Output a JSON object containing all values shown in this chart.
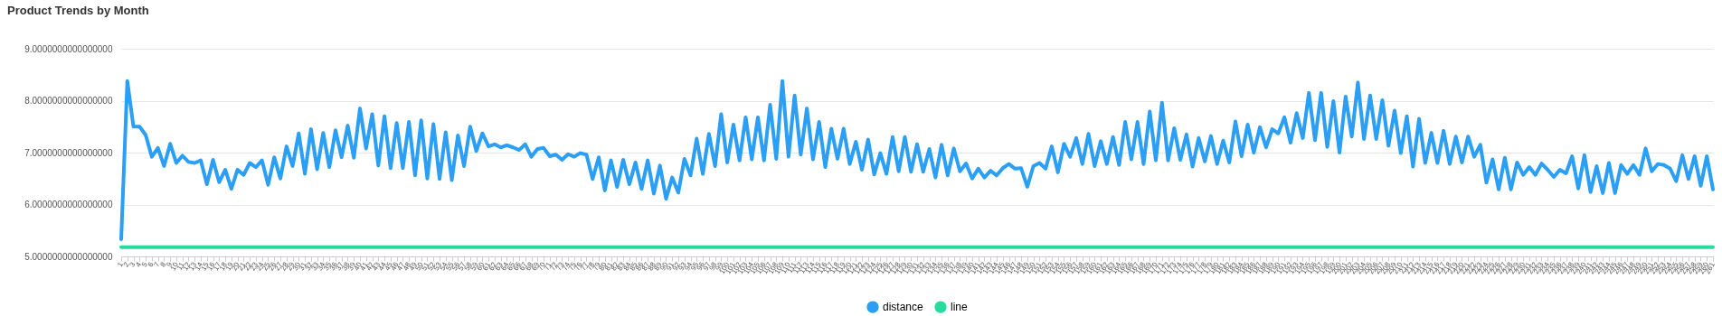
{
  "chart_data": {
    "type": "line",
    "title": "Product Trends by Month",
    "categories": [
      "1",
      "2",
      "3",
      "4",
      "5",
      "6",
      "7",
      "8",
      "9",
      "10",
      "11",
      "12",
      "13",
      "14",
      "15",
      "16",
      "17",
      "18",
      "19",
      "20",
      "21",
      "22",
      "23",
      "24",
      "25",
      "26",
      "27",
      "28",
      "29",
      "30",
      "31",
      "32",
      "33",
      "34",
      "35",
      "36",
      "37",
      "38",
      "39",
      "40",
      "41",
      "42",
      "43",
      "44",
      "45",
      "46",
      "47",
      "48",
      "49",
      "50",
      "51",
      "52",
      "53",
      "54",
      "55",
      "56",
      "57",
      "58",
      "59",
      "60",
      "61",
      "62",
      "63",
      "64",
      "65",
      "66",
      "67",
      "68",
      "69",
      "70",
      "71",
      "72",
      "73",
      "74",
      "75",
      "76",
      "77",
      "78",
      "79",
      "80",
      "81",
      "82",
      "83",
      "84",
      "85",
      "86",
      "87",
      "88",
      "89",
      "90",
      "91",
      "92",
      "93",
      "94",
      "95",
      "96",
      "97",
      "98",
      "99",
      "100",
      "101",
      "102",
      "103",
      "104",
      "105",
      "106",
      "107",
      "108",
      "109",
      "110",
      "111",
      "112",
      "113",
      "114",
      "115",
      "116",
      "117",
      "118",
      "119",
      "120",
      "121",
      "122",
      "123",
      "124",
      "125",
      "126",
      "127",
      "128",
      "129",
      "130",
      "131",
      "132",
      "133",
      "134",
      "135",
      "136",
      "137",
      "138",
      "139",
      "140",
      "141",
      "142",
      "143",
      "144",
      "145",
      "146",
      "147",
      "148",
      "149",
      "150",
      "151",
      "152",
      "153",
      "154",
      "155",
      "156",
      "157",
      "158",
      "159",
      "160",
      "161",
      "162",
      "163",
      "164",
      "165",
      "166",
      "167",
      "168",
      "169",
      "170",
      "171",
      "172",
      "173",
      "174",
      "175",
      "176",
      "177",
      "178",
      "179",
      "180",
      "181",
      "182",
      "183",
      "184",
      "185",
      "186",
      "187",
      "188",
      "189",
      "190",
      "191",
      "192",
      "193",
      "194",
      "195",
      "196",
      "197",
      "198",
      "199",
      "200",
      "201",
      "202",
      "203",
      "204",
      "205",
      "206",
      "207",
      "208",
      "209",
      "210",
      "211",
      "212",
      "213",
      "214",
      "215",
      "216",
      "217",
      "218",
      "219",
      "220",
      "221",
      "222",
      "223",
      "224",
      "225",
      "226",
      "227",
      "228",
      "229",
      "230",
      "231",
      "232",
      "233",
      "234",
      "235",
      "236",
      "237",
      "238",
      "239",
      "240",
      "241",
      "242",
      "243",
      "244",
      "245",
      "246",
      "247",
      "248",
      "249",
      "250",
      "251",
      "252",
      "253",
      "254",
      "255",
      "256",
      "257",
      "258",
      "259",
      "260",
      "261"
    ],
    "series": [
      {
        "name": "distance",
        "color": "#2b9ff6",
        "values": [
          5.33,
          8.38,
          7.5,
          7.5,
          7.34,
          6.92,
          7.09,
          6.74,
          7.17,
          6.8,
          6.94,
          6.82,
          6.8,
          6.85,
          6.39,
          6.86,
          6.43,
          6.67,
          6.3,
          6.67,
          6.57,
          6.8,
          6.72,
          6.85,
          6.38,
          6.91,
          6.5,
          7.12,
          6.74,
          7.37,
          6.59,
          7.45,
          6.68,
          7.38,
          6.72,
          7.43,
          6.91,
          7.52,
          6.9,
          7.85,
          7.08,
          7.74,
          6.75,
          7.7,
          6.7,
          7.57,
          6.7,
          7.59,
          6.56,
          7.62,
          6.5,
          7.55,
          6.49,
          7.39,
          6.47,
          7.33,
          6.74,
          7.5,
          7.03,
          7.37,
          7.12,
          7.16,
          7.1,
          7.14,
          7.1,
          7.05,
          7.16,
          6.92,
          7.07,
          7.09,
          6.93,
          6.96,
          6.86,
          6.97,
          6.92,
          6.99,
          6.96,
          6.49,
          6.91,
          6.27,
          6.85,
          6.34,
          6.86,
          6.39,
          6.81,
          6.3,
          6.85,
          6.21,
          6.75,
          6.11,
          6.52,
          6.23,
          6.88,
          6.56,
          7.27,
          6.59,
          7.36,
          6.74,
          7.74,
          6.81,
          7.54,
          6.85,
          7.68,
          6.87,
          7.68,
          6.85,
          7.92,
          6.88,
          8.38,
          6.92,
          8.1,
          6.96,
          7.85,
          6.87,
          7.59,
          6.72,
          7.46,
          6.88,
          7.46,
          6.78,
          7.21,
          6.67,
          7.25,
          6.58,
          6.99,
          6.59,
          7.3,
          6.64,
          7.3,
          6.63,
          7.16,
          6.63,
          7.07,
          6.52,
          7.15,
          6.56,
          7.08,
          6.64,
          6.79,
          6.5,
          6.69,
          6.52,
          6.65,
          6.56,
          6.7,
          6.78,
          6.69,
          6.7,
          6.34,
          6.74,
          6.8,
          6.69,
          7.12,
          6.62,
          7.17,
          6.92,
          7.28,
          6.78,
          7.36,
          6.74,
          7.22,
          6.78,
          7.3,
          6.76,
          7.59,
          6.87,
          7.59,
          6.78,
          7.79,
          6.85,
          7.96,
          6.85,
          7.47,
          6.86,
          7.35,
          6.73,
          7.28,
          6.83,
          7.32,
          6.78,
          7.23,
          6.81,
          7.6,
          6.93,
          7.54,
          7.0,
          7.49,
          7.1,
          7.45,
          7.37,
          7.68,
          7.19,
          7.76,
          7.28,
          8.15,
          7.24,
          8.15,
          7.11,
          7.99,
          7.0,
          8.08,
          7.31,
          8.35,
          7.26,
          8.1,
          7.26,
          8.01,
          7.13,
          7.81,
          6.99,
          7.7,
          6.73,
          7.65,
          6.8,
          7.38,
          6.8,
          7.42,
          6.78,
          7.31,
          6.81,
          7.31,
          6.92,
          7.15,
          6.42,
          6.87,
          6.29,
          6.9,
          6.29,
          6.81,
          6.57,
          6.72,
          6.57,
          6.79,
          6.67,
          6.53,
          6.67,
          6.6,
          6.93,
          6.31,
          6.95,
          6.24,
          6.74,
          6.22,
          6.8,
          6.22,
          6.76,
          6.59,
          6.76,
          6.57,
          7.08,
          6.64,
          6.78,
          6.76,
          6.69,
          6.45,
          6.95,
          6.49,
          6.93,
          6.36,
          6.93,
          6.29
        ]
      },
      {
        "name": "line",
        "color": "#25dc9c",
        "values": [
          5.18,
          5.18,
          5.18,
          5.18,
          5.18,
          5.18,
          5.18,
          5.18,
          5.18,
          5.18,
          5.18,
          5.18,
          5.18,
          5.18,
          5.18,
          5.18,
          5.18,
          5.18,
          5.18,
          5.18,
          5.18,
          5.18,
          5.18,
          5.18,
          5.18,
          5.18,
          5.18,
          5.18,
          5.18,
          5.18,
          5.18,
          5.18,
          5.18,
          5.18,
          5.18,
          5.18,
          5.18,
          5.18,
          5.18,
          5.18,
          5.18,
          5.18,
          5.18,
          5.18,
          5.18,
          5.18,
          5.18,
          5.18,
          5.18,
          5.18,
          5.18,
          5.18,
          5.18,
          5.18,
          5.18,
          5.18,
          5.18,
          5.18,
          5.18,
          5.18,
          5.18,
          5.18,
          5.18,
          5.18,
          5.18,
          5.18,
          5.18,
          5.18,
          5.18,
          5.18,
          5.18,
          5.18,
          5.18,
          5.18,
          5.18,
          5.18,
          5.18,
          5.18,
          5.18,
          5.18,
          5.18,
          5.18,
          5.18,
          5.18,
          5.18,
          5.18,
          5.18,
          5.18,
          5.18,
          5.18,
          5.18,
          5.18,
          5.18,
          5.18,
          5.18,
          5.18,
          5.18,
          5.18,
          5.18,
          5.18,
          5.18,
          5.18,
          5.18,
          5.18,
          5.18,
          5.18,
          5.18,
          5.18,
          5.18,
          5.18,
          5.18,
          5.18,
          5.18,
          5.18,
          5.18,
          5.18,
          5.18,
          5.18,
          5.18,
          5.18,
          5.18,
          5.18,
          5.18,
          5.18,
          5.18,
          5.18,
          5.18,
          5.18,
          5.18,
          5.18,
          5.18,
          5.18,
          5.18,
          5.18,
          5.18,
          5.18,
          5.18,
          5.18,
          5.18,
          5.18,
          5.18,
          5.18,
          5.18,
          5.18,
          5.18,
          5.18,
          5.18,
          5.18,
          5.18,
          5.18,
          5.18,
          5.18,
          5.18,
          5.18,
          5.18,
          5.18,
          5.18,
          5.18,
          5.18,
          5.18,
          5.18,
          5.18,
          5.18,
          5.18,
          5.18,
          5.18,
          5.18,
          5.18,
          5.18,
          5.18,
          5.18,
          5.18,
          5.18,
          5.18,
          5.18,
          5.18,
          5.18,
          5.18,
          5.18,
          5.18,
          5.18,
          5.18,
          5.18,
          5.18,
          5.18,
          5.18,
          5.18,
          5.18,
          5.18,
          5.18,
          5.18,
          5.18,
          5.18,
          5.18,
          5.18,
          5.18,
          5.18,
          5.18,
          5.18,
          5.18,
          5.18,
          5.18,
          5.18,
          5.18,
          5.18,
          5.18,
          5.18,
          5.18,
          5.18,
          5.18,
          5.18,
          5.18,
          5.18,
          5.18,
          5.18,
          5.18,
          5.18,
          5.18,
          5.18,
          5.18,
          5.18,
          5.18,
          5.18,
          5.18,
          5.18,
          5.18,
          5.18,
          5.18,
          5.18,
          5.18,
          5.18,
          5.18,
          5.18,
          5.18,
          5.18,
          5.18,
          5.18,
          5.18,
          5.18,
          5.18,
          5.18,
          5.18,
          5.18,
          5.18,
          5.18,
          5.18,
          5.18,
          5.18,
          5.18,
          5.18,
          5.18,
          5.18,
          5.18,
          5.18,
          5.18,
          5.18,
          5.18,
          5.18,
          5.18,
          5.18,
          5.18
        ]
      }
    ],
    "ylim": [
      5,
      9
    ],
    "yticks": [
      {
        "value": 5,
        "label": "5.0000000000000000"
      },
      {
        "value": 6,
        "label": "6.0000000000000000"
      },
      {
        "value": 7,
        "label": "7.0000000000000000"
      },
      {
        "value": 8,
        "label": "8.0000000000000000"
      },
      {
        "value": 9,
        "label": "9.0000000000000000"
      }
    ],
    "grid": "y",
    "legend": "bottom",
    "marker": "none",
    "line_style": "solid"
  }
}
